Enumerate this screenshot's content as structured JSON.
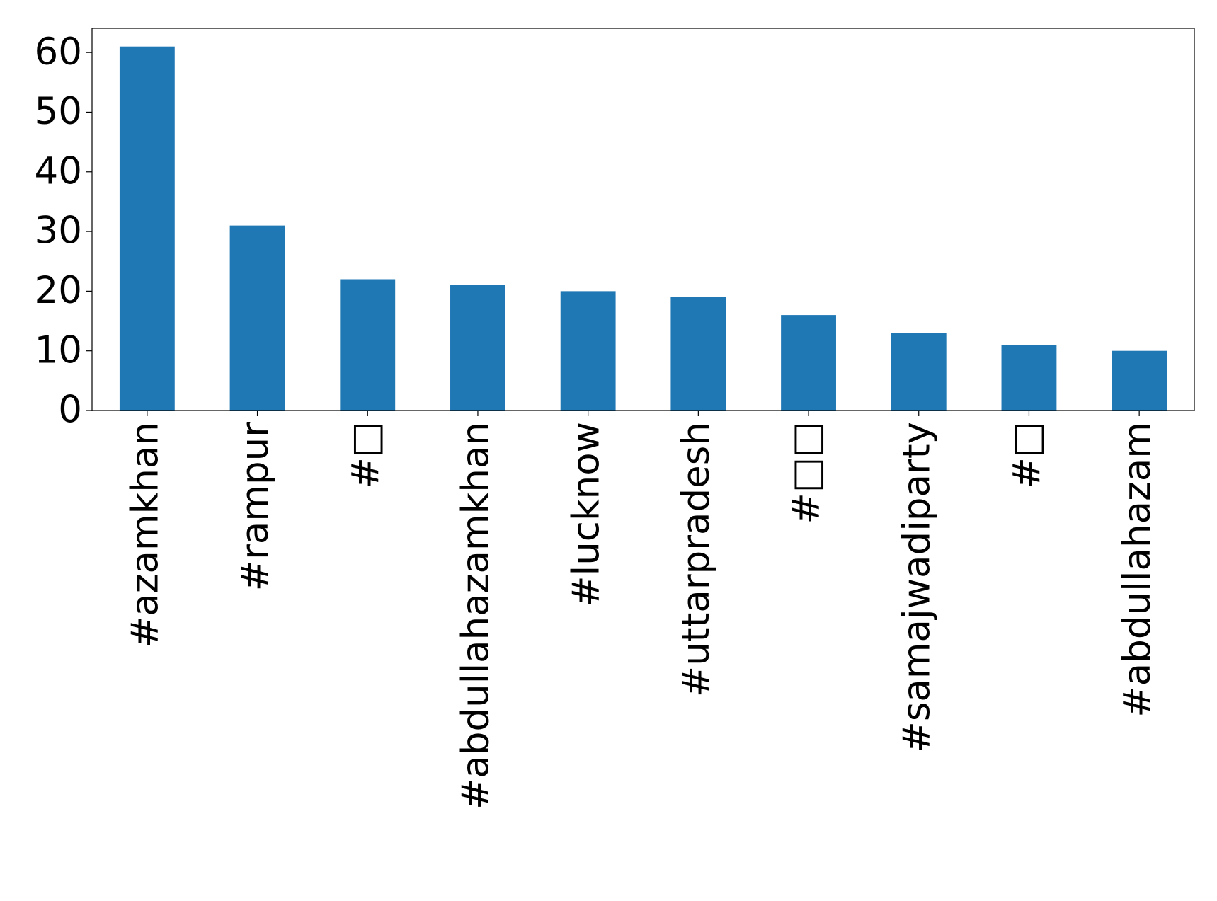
{
  "chart_data": {
    "type": "bar",
    "categories": [
      "#azamkhan",
      "#rampur",
      "#□",
      "#abdullahazamkhan",
      "#lucknow",
      "#uttarpradesh",
      "#□□",
      "#samajwadiparty",
      "#□",
      "#abdullahazam"
    ],
    "values": [
      61,
      31,
      22,
      21,
      20,
      19,
      16,
      13,
      11,
      10
    ],
    "color": "#1f77b4",
    "ylim": [
      0,
      64.05
    ],
    "yticks": [
      0,
      10,
      20,
      30,
      40,
      50,
      60
    ],
    "grid": false
  }
}
